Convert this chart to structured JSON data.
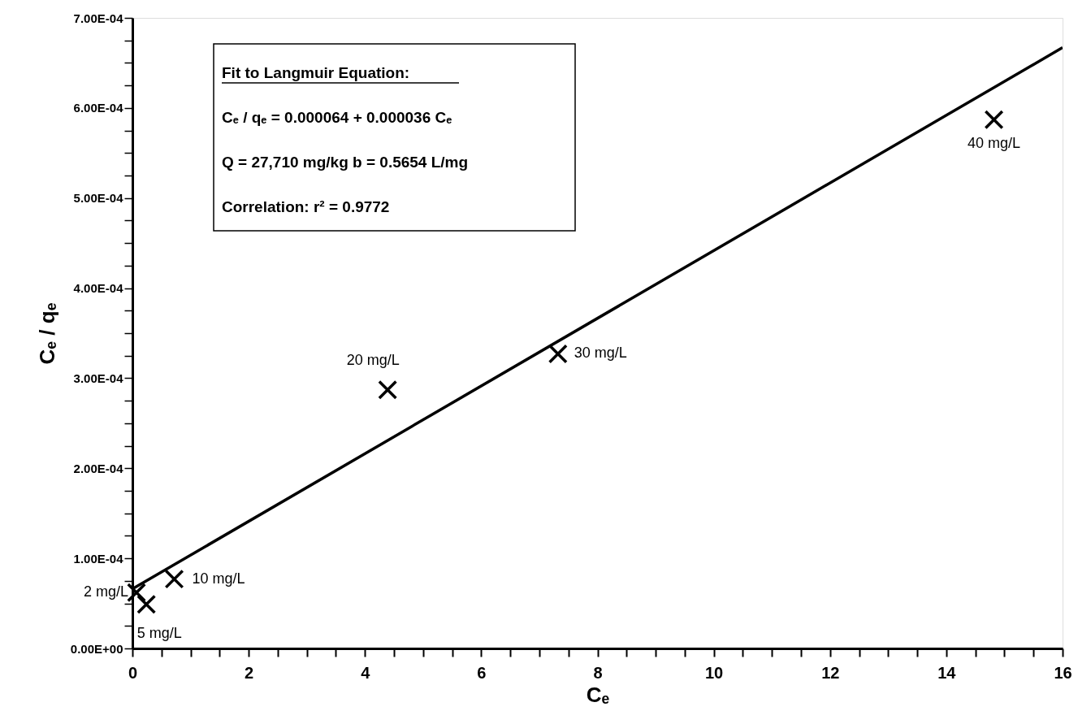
{
  "chart_data": {
    "type": "scatter",
    "xlabel": "Cₑ",
    "ylabel": "Cₑ / qₑ",
    "xlim": [
      0,
      16
    ],
    "ylim": [
      0,
      0.0007
    ],
    "xticks": [
      0,
      {
        "value": 0.5,
        "label": null
      },
      {
        "value": 1,
        "label": null
      },
      {
        "value": 1.5,
        "label": null
      },
      2,
      {
        "value": 2.5,
        "label": null
      },
      {
        "value": 3,
        "label": null
      },
      {
        "value": 3.5,
        "label": null
      },
      4,
      {
        "value": 4.5,
        "label": null
      },
      {
        "value": 5,
        "label": null
      },
      {
        "value": 5.5,
        "label": null
      },
      6,
      {
        "value": 6.5,
        "label": null
      },
      {
        "value": 7,
        "label": null
      },
      {
        "value": 7.5,
        "label": null
      },
      8,
      {
        "value": 8.5,
        "label": null
      },
      {
        "value": 9,
        "label": null
      },
      {
        "value": 9.5,
        "label": null
      },
      10,
      {
        "value": 10.5,
        "label": null
      },
      {
        "value": 11,
        "label": null
      },
      {
        "value": 11.5,
        "label": null
      },
      12,
      {
        "value": 12.5,
        "label": null
      },
      {
        "value": 13,
        "label": null
      },
      {
        "value": 13.5,
        "label": null
      },
      14,
      {
        "value": 14.5,
        "label": null
      },
      {
        "value": 15,
        "label": null
      },
      {
        "value": 15.5,
        "label": null
      },
      16
    ],
    "yticks": [
      {
        "value": 0,
        "label": "0.00E+00"
      },
      {
        "value": 2.5e-05,
        "label": null
      },
      {
        "value": 5e-05,
        "label": null
      },
      {
        "value": 7.5e-05,
        "label": null
      },
      {
        "value": 0.0001,
        "label": "1.00E-04"
      },
      {
        "value": 0.000125,
        "label": null
      },
      {
        "value": 0.00015,
        "label": null
      },
      {
        "value": 0.000175,
        "label": null
      },
      {
        "value": 0.0002,
        "label": "2.00E-04"
      },
      {
        "value": 0.000225,
        "label": null
      },
      {
        "value": 0.00025,
        "label": null
      },
      {
        "value": 0.000275,
        "label": null
      },
      {
        "value": 0.0003,
        "label": "3.00E-04"
      },
      {
        "value": 0.000325,
        "label": null
      },
      {
        "value": 0.00035,
        "label": null
      },
      {
        "value": 0.000375,
        "label": null
      },
      {
        "value": 0.0004,
        "label": "4.00E-04"
      },
      {
        "value": 0.000425,
        "label": null
      },
      {
        "value": 0.00045,
        "label": null
      },
      {
        "value": 0.000475,
        "label": null
      },
      {
        "value": 0.0005,
        "label": "5.00E-04"
      },
      {
        "value": 0.000525,
        "label": null
      },
      {
        "value": 0.00055,
        "label": null
      },
      {
        "value": 0.000575,
        "label": null
      },
      {
        "value": 0.0006,
        "label": "6.00E-04"
      },
      {
        "value": 0.000625,
        "label": null
      },
      {
        "value": 0.00065,
        "label": null
      },
      {
        "value": 0.000675,
        "label": null
      },
      {
        "value": 0.0007,
        "label": "7.00E-04"
      }
    ],
    "grid": false,
    "marker": "cross",
    "series": [
      {
        "color": "#000000",
        "x": [
          0.07,
          0.24,
          0.72,
          4.39,
          7.32,
          14.82
        ],
        "values": [
          6.2e-05,
          4.9e-05,
          7.7e-05,
          0.000287,
          0.000327,
          0.000587
        ]
      },
      {
        "type": "line",
        "marker": "none",
        "color": "#000000",
        "x": [
          0,
          16
        ],
        "values": [
          6.6e-05,
          0.000667
        ]
      }
    ],
    "annotations": [
      "Fit to Langmuir Equation:",
      "Cₑ / qₑ = 0.000064 + 0.000036 Cₑ",
      "Q = 27,710  mg/kg     b = 0.5654 L/mg",
      "Correlation:  r² = 0.9772",
      {
        "text": "2 mg/L",
        "x": 0.07,
        "y": 6.2e-05
      },
      {
        "text": "5 mg/L",
        "x": 0.24,
        "y": 4.9e-05
      },
      {
        "text": "10 mg/L",
        "x": 0.72,
        "y": 7.7e-05
      },
      {
        "text": "20 mg/L",
        "x": 4.39,
        "y": 0.000287
      },
      {
        "text": "30 mg/L",
        "x": 7.32,
        "y": 0.000327
      },
      {
        "text": "40 mg/L",
        "x": 14.82,
        "y": 0.000587
      }
    ]
  }
}
